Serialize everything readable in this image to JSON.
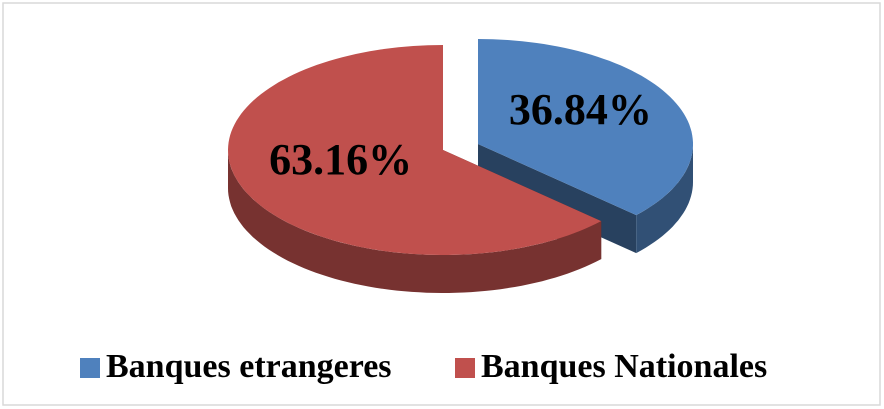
{
  "chart_data": {
    "type": "pie3d",
    "categories": [
      "Banques etrangeres",
      "Banques Nationales"
    ],
    "values": [
      36.84,
      63.16
    ],
    "value_labels": [
      "36.84%",
      "63.16%"
    ],
    "colors": [
      "#4f81bd",
      "#c0504d"
    ],
    "legend": "bottom"
  }
}
